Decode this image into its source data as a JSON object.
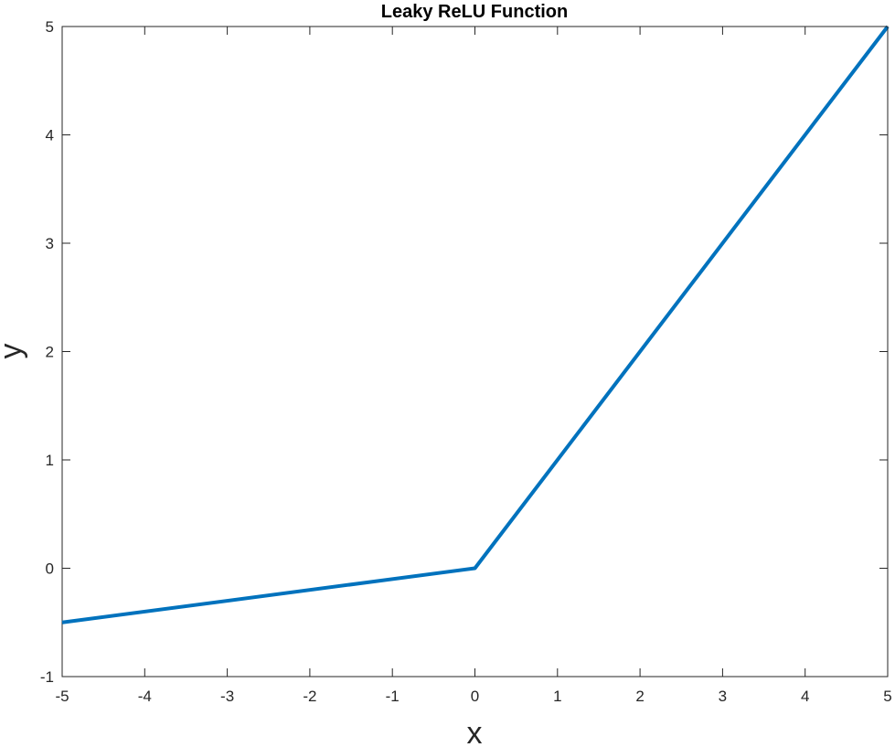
{
  "chart_data": {
    "type": "line",
    "title": "Leaky ReLU Function",
    "xlabel": "x",
    "ylabel": "y",
    "xlim": [
      -5,
      5
    ],
    "ylim": [
      -1,
      5
    ],
    "xticks": [
      "-5",
      "-4",
      "-3",
      "-2",
      "-1",
      "0",
      "1",
      "2",
      "3",
      "4",
      "5"
    ],
    "yticks": [
      "-1",
      "0",
      "1",
      "2",
      "3",
      "4",
      "5"
    ],
    "grid": false,
    "series": [
      {
        "x": [
          -5,
          0,
          5
        ],
        "y": [
          -0.5,
          0,
          5
        ],
        "color": "#0072BD"
      }
    ]
  },
  "colors": {
    "axes": "#262626",
    "line": "#0072BD"
  }
}
